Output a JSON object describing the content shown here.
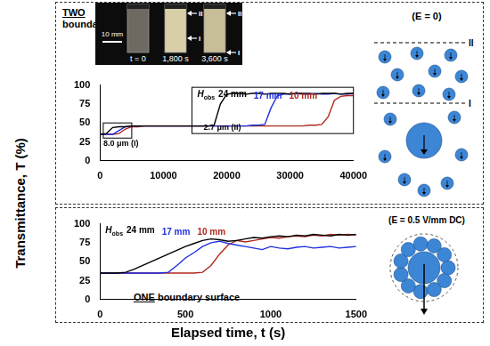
{
  "chart_data": [
    {
      "type": "line",
      "annotation": [
        "TWO",
        "boundary surfaces"
      ],
      "y_label": "Transmittance, T (%)",
      "x": [
        0,
        1000,
        2000,
        3000,
        4000,
        5000,
        6000,
        7000,
        8000,
        9000,
        10000,
        11000,
        12000,
        13000,
        14000,
        15000,
        16000,
        17000,
        18000,
        19000,
        20000,
        21000,
        22000,
        23000,
        24000,
        25000,
        26000,
        27000,
        28000,
        29000,
        30000,
        31000,
        32000,
        33000,
        34000,
        35000,
        36000,
        37000,
        38000,
        39000,
        40000
      ],
      "series": [
        {
          "name": "24 mm",
          "color": "#000000",
          "values": [
            35,
            36,
            44,
            45,
            45,
            46,
            46,
            46,
            46,
            46,
            46,
            46,
            46,
            46,
            46,
            46,
            46,
            46,
            47,
            75,
            88,
            89,
            89,
            88,
            89,
            89,
            88,
            89,
            89,
            89,
            88,
            89,
            89,
            89,
            88,
            89,
            89,
            89,
            88,
            89,
            89
          ]
        },
        {
          "name": "17 mm",
          "color": "#1f2fe0",
          "values": [
            35,
            35,
            35,
            40,
            45,
            46,
            46,
            46,
            46,
            46,
            46,
            46,
            46,
            46,
            46,
            46,
            46,
            46,
            46,
            46,
            46,
            46,
            46,
            46,
            47,
            47,
            48,
            70,
            86,
            88,
            88,
            89,
            88,
            88,
            89,
            88,
            88,
            89,
            88,
            88,
            89
          ]
        },
        {
          "name": "10 mm",
          "color": "#b0281c",
          "values": [
            35,
            35,
            35,
            36,
            42,
            45,
            45,
            46,
            46,
            46,
            46,
            46,
            46,
            46,
            46,
            46,
            46,
            46,
            46,
            46,
            46,
            46,
            46,
            46,
            46,
            46,
            46,
            46,
            46,
            46,
            46,
            46,
            46,
            47,
            47,
            48,
            58,
            80,
            85,
            86,
            86
          ]
        }
      ],
      "legend": "upper left",
      "legend_title": {
        "text": "H",
        "sub": "obs"
      },
      "regions": [
        {
          "label": "8.0 μm (I)",
          "xlim": [
            500,
            5000
          ],
          "ylim": [
            30,
            50
          ]
        },
        {
          "label": "2.7 μm (II)",
          "xlim": [
            14500,
            40000
          ],
          "ylim": [
            36,
            97
          ]
        }
      ],
      "xlim": [
        0,
        40000
      ],
      "xticks": [
        0,
        10000,
        20000,
        30000,
        40000
      ],
      "ylim": [
        0,
        100
      ],
      "yticks": [
        0,
        25,
        50,
        75,
        100
      ],
      "grid": false
    },
    {
      "type": "line",
      "annotation": [
        "ONE",
        "boundary surface"
      ],
      "x_label": "Elapsed time, t (s)",
      "x": [
        0,
        50,
        100,
        150,
        200,
        250,
        300,
        350,
        400,
        450,
        500,
        550,
        600,
        650,
        700,
        750,
        800,
        850,
        900,
        950,
        1000,
        1050,
        1100,
        1150,
        1200,
        1250,
        1300,
        1350,
        1400,
        1450,
        1500
      ],
      "series": [
        {
          "name": "24 mm",
          "color": "#000000",
          "values": [
            35,
            35,
            35,
            36,
            40,
            45,
            50,
            55,
            60,
            65,
            70,
            74,
            78,
            80,
            79,
            77,
            78,
            80,
            82,
            81,
            83,
            84,
            83,
            85,
            84,
            86,
            85,
            84,
            86,
            85,
            86
          ]
        },
        {
          "name": "17 mm",
          "color": "#1f2fe0",
          "values": [
            35,
            35,
            35,
            35,
            35,
            35,
            35,
            35,
            36,
            45,
            55,
            62,
            70,
            75,
            77,
            74,
            72,
            70,
            68,
            66,
            70,
            68,
            67,
            69,
            70,
            68,
            69,
            70,
            68,
            69,
            70
          ]
        },
        {
          "name": "10 mm",
          "color": "#b0281c",
          "values": [
            35,
            35,
            35,
            35,
            35,
            35,
            35,
            35,
            35,
            35,
            35,
            35,
            36,
            45,
            60,
            72,
            78,
            76,
            78,
            80,
            82,
            81,
            83,
            84,
            83,
            85,
            84,
            86,
            85,
            86,
            85
          ]
        }
      ],
      "legend": "upper left",
      "legend_title": {
        "text": "H",
        "sub": "obs"
      },
      "xlim": [
        0,
        1500
      ],
      "xticks": [
        0,
        500,
        1000,
        1500
      ],
      "ylim": [
        0,
        100
      ],
      "yticks": [
        0,
        25,
        50,
        75,
        100
      ],
      "grid": false
    }
  ],
  "photo": {
    "scale": "10 mm",
    "times": [
      "t = 0",
      "1,800 s",
      "3,600 s"
    ],
    "markers": [
      "II",
      "I"
    ]
  },
  "diagrams": [
    {
      "condition": "(E = 0)",
      "lines": [
        "II",
        "I"
      ]
    },
    {
      "condition": "(E = 0.5 V/mm DC)"
    }
  ]
}
